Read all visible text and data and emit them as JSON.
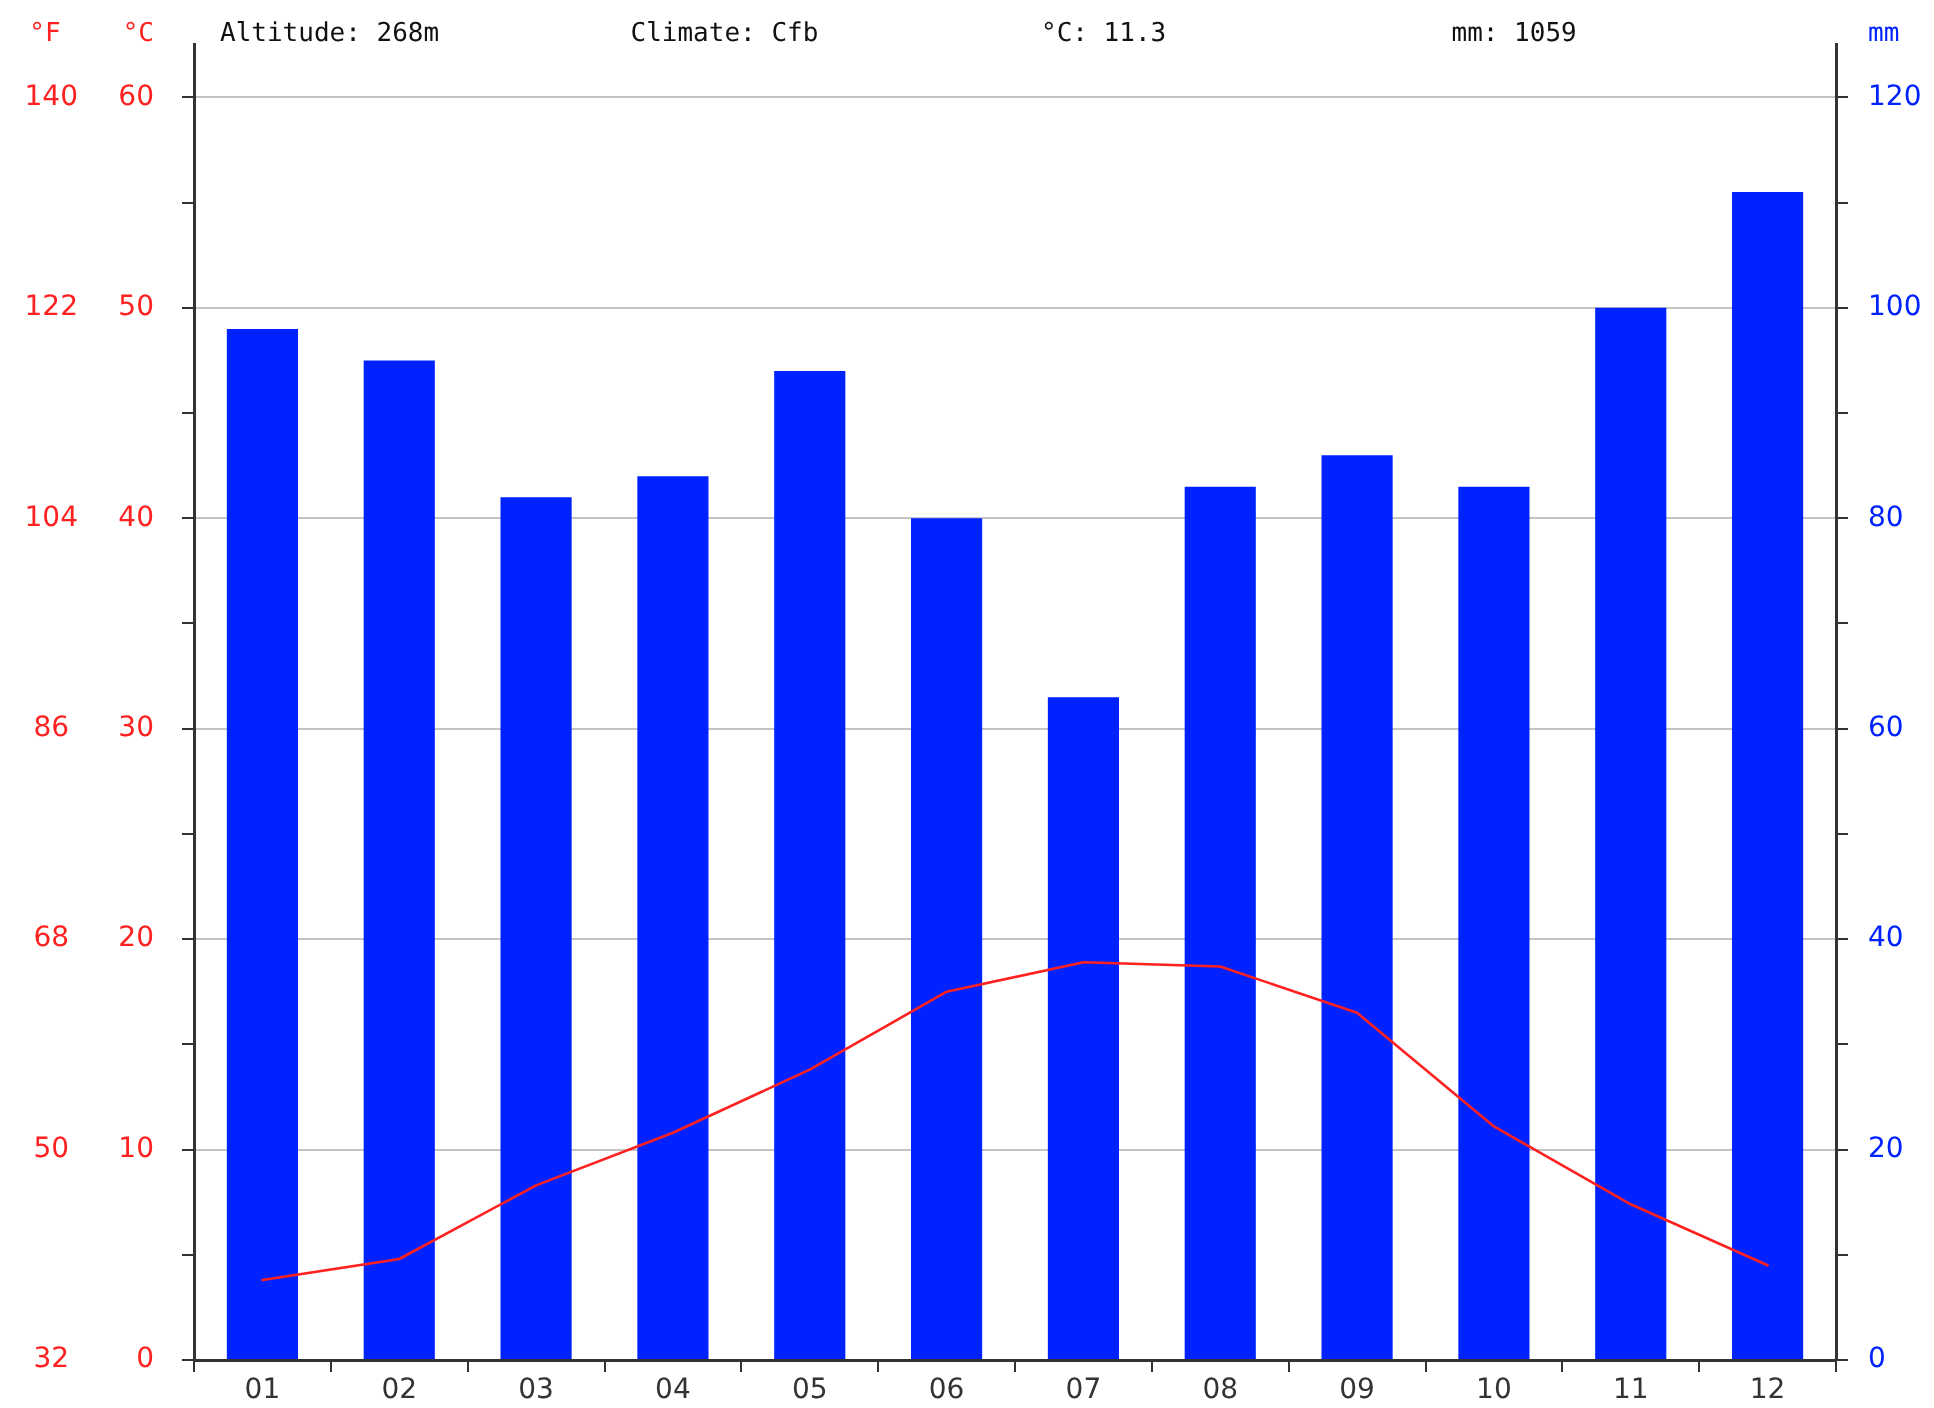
{
  "chart_data": {
    "type": "bar",
    "annotations": [
      "Altitude: 268m",
      "Climate: Cfb",
      "°C: 11.3",
      "mm: 1059"
    ],
    "ylabel": "°C",
    "y2label": "mm",
    "y3label": "°F",
    "categories": [
      "01",
      "02",
      "03",
      "04",
      "05",
      "06",
      "07",
      "08",
      "09",
      "10",
      "11",
      "12"
    ],
    "series": [
      {
        "axis": "y2",
        "color": "#0022ff",
        "values": [
          98,
          95,
          82,
          84,
          94,
          80,
          63,
          83,
          86,
          83,
          100,
          111
        ]
      },
      {
        "type": "line",
        "axis": "y",
        "color": "#ff2020",
        "values": [
          3.8,
          4.8,
          8.3,
          10.8,
          13.8,
          17.5,
          18.9,
          18.7,
          16.5,
          11.1,
          7.4,
          4.5
        ]
      }
    ],
    "ylim": [
      0,
      62.5
    ],
    "yticks": [
      0,
      {
        "value": 5,
        "label": null
      },
      10,
      {
        "value": 15,
        "label": null
      },
      20,
      {
        "value": 25,
        "label": null
      },
      30,
      {
        "value": 35,
        "label": null
      },
      40,
      {
        "value": 45,
        "label": null
      },
      50,
      {
        "value": 55,
        "label": null
      },
      60
    ],
    "y2lim": [
      0,
      125
    ],
    "y2ticks": [
      0,
      {
        "value": 10,
        "label": null
      },
      20,
      {
        "value": 30,
        "label": null
      },
      40,
      {
        "value": 50,
        "label": null
      },
      60,
      {
        "value": 70,
        "label": null
      },
      80,
      {
        "value": 90,
        "label": null
      },
      100,
      {
        "value": 110,
        "label": null
      },
      120
    ],
    "y3lim": [
      32,
      144.5
    ],
    "y3ticks": [
      32,
      50,
      68,
      86,
      104,
      122,
      140
    ],
    "grid": "y",
    "marker": "none",
    "line_style": "solid"
  }
}
